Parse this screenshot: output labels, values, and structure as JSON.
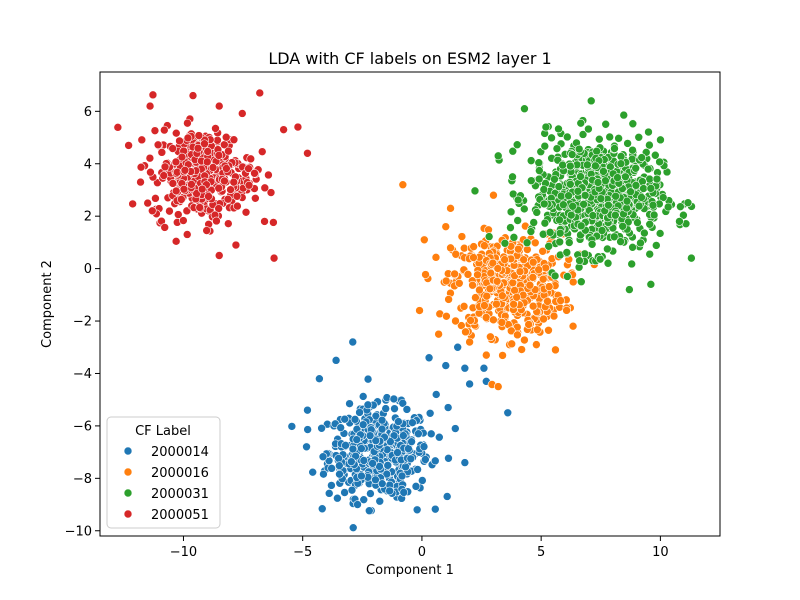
{
  "chart_data": {
    "type": "scatter",
    "title": "LDA with CF labels on ESM2 layer 1",
    "xlabel": "Component 1",
    "ylabel": "Component 2",
    "xlim": [
      -13.5,
      12.5
    ],
    "ylim": [
      -10.2,
      7.5
    ],
    "xticks": [
      -10,
      -5,
      0,
      5,
      10
    ],
    "yticks": [
      -10,
      -8,
      -6,
      -4,
      -2,
      0,
      2,
      4,
      6
    ],
    "grid": false,
    "legend": {
      "title": "CF Label",
      "placement": "lower-left"
    },
    "series": [
      {
        "name": "2000014",
        "color": "#1f77b4",
        "cluster": {
          "center": [
            -1.8,
            -7.0
          ],
          "spread": [
            1.05,
            0.85
          ],
          "count": 500
        },
        "points": [
          [
            -4.8,
            -5.4
          ],
          [
            -4.3,
            -4.2
          ],
          [
            -2.9,
            -2.8
          ],
          [
            -3.6,
            -3.5
          ],
          [
            0.3,
            -3.4
          ],
          [
            1.5,
            -3.0
          ],
          [
            1.8,
            -3.8
          ],
          [
            2.6,
            -3.8
          ],
          [
            2.7,
            -4.3
          ],
          [
            3.6,
            -5.5
          ],
          [
            2.0,
            -4.4
          ],
          [
            1.0,
            -3.7
          ],
          [
            1.8,
            -7.4
          ],
          [
            1.4,
            -6.1
          ],
          [
            -0.2,
            -9.2
          ],
          [
            -2.7,
            -9.0
          ],
          [
            1.1,
            -5.3
          ],
          [
            0.6,
            -4.8
          ]
        ]
      },
      {
        "name": "2000016",
        "color": "#ff7f0e",
        "cluster": {
          "center": [
            3.6,
            -0.6
          ],
          "spread": [
            1.15,
            0.95
          ],
          "count": 500
        },
        "points": [
          [
            -0.8,
            3.2
          ],
          [
            0.1,
            1.1
          ],
          [
            1.2,
            2.3
          ],
          [
            3.2,
            -4.5
          ],
          [
            2.7,
            -3.3
          ],
          [
            2.0,
            -2.8
          ],
          [
            0.7,
            -2.5
          ],
          [
            -0.1,
            -1.6
          ],
          [
            5.6,
            -3.1
          ],
          [
            4.8,
            -2.9
          ],
          [
            1.0,
            1.6
          ],
          [
            3.0,
            2.8
          ]
        ]
      },
      {
        "name": "2000031",
        "color": "#2ca02c",
        "cluster": {
          "center": [
            7.3,
            2.8
          ],
          "spread": [
            1.35,
            1.05
          ],
          "count": 750
        },
        "points": [
          [
            3.2,
            4.3
          ],
          [
            4.3,
            6.1
          ],
          [
            7.1,
            6.4
          ],
          [
            11.3,
            0.4
          ],
          [
            10.8,
            1.8
          ],
          [
            8.7,
            -0.8
          ],
          [
            9.6,
            -0.6
          ],
          [
            6.1,
            -0.3
          ],
          [
            3.8,
            3.5
          ],
          [
            5.2,
            5.4
          ]
        ]
      },
      {
        "name": "2000051",
        "color": "#d62728",
        "cluster": {
          "center": [
            -9.2,
            3.6
          ],
          "spread": [
            1.05,
            0.85
          ],
          "count": 380
        },
        "points": [
          [
            -6.8,
            6.7
          ],
          [
            -9.6,
            6.6
          ],
          [
            -11.4,
            6.2
          ],
          [
            -8.5,
            6.2
          ],
          [
            -12.3,
            4.7
          ],
          [
            -4.8,
            4.4
          ],
          [
            -5.2,
            5.4
          ],
          [
            -5.8,
            5.3
          ],
          [
            -6.2,
            0.4
          ],
          [
            -8.5,
            0.5
          ],
          [
            -6.6,
            1.8
          ],
          [
            -7.8,
            0.9
          ],
          [
            -11.8,
            3.3
          ],
          [
            -11.5,
            2.5
          ]
        ]
      }
    ]
  }
}
